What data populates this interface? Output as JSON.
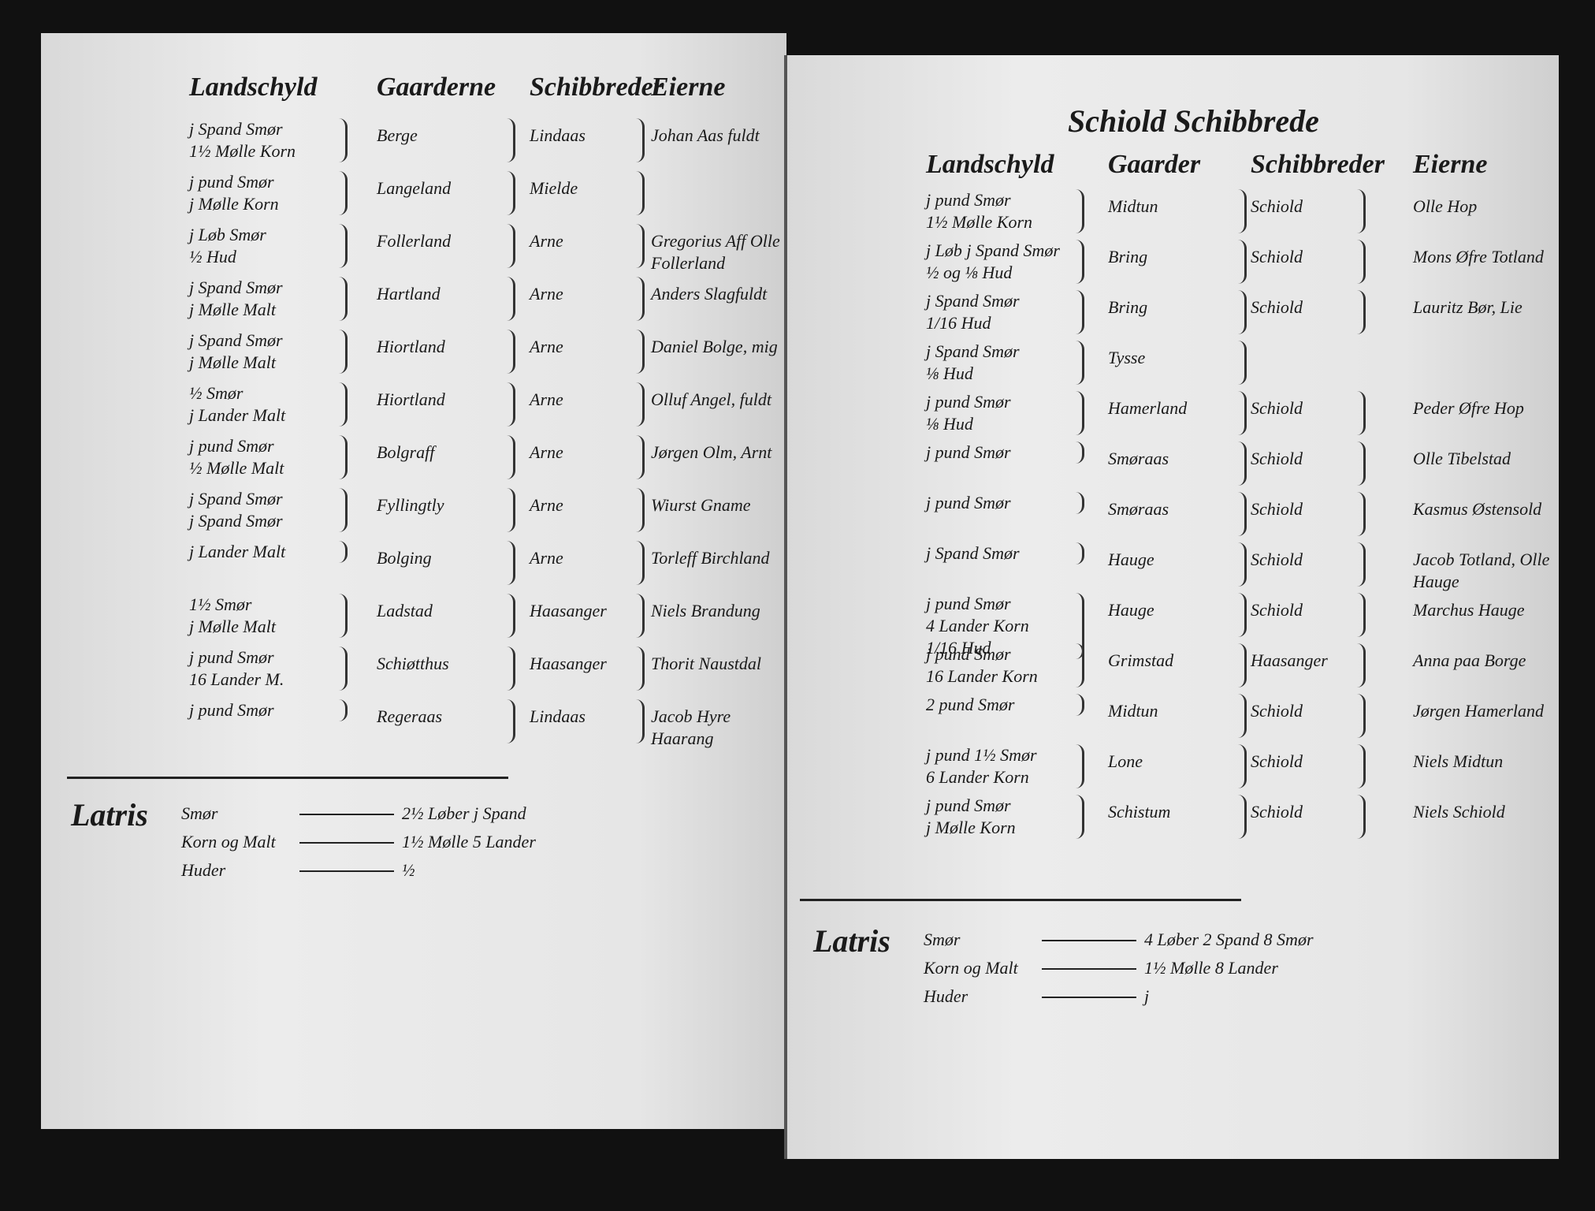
{
  "left": {
    "headers": [
      "Landschyld",
      "Gaarderne",
      "Schibbreder",
      "Eierne"
    ],
    "rows": [
      {
        "landschyld": [
          "j Spand Smør",
          "1½ Mølle Korn"
        ],
        "gaard": "Berge",
        "schibbrede": "Lindaas",
        "eier": "Johan Aas fuldt"
      },
      {
        "landschyld": [
          "j pund Smør",
          "j Mølle Korn"
        ],
        "gaard": "Langeland",
        "schibbrede": "Mielde"
      },
      {
        "landschyld": [
          "j Løb Smør",
          "½ Hud"
        ],
        "gaard": "Follerland",
        "schibbrede": "Arne",
        "eier": "Gregorius Aff Olle Follerland"
      },
      {
        "landschyld": [
          "j Spand Smør",
          "j Mølle Malt"
        ],
        "gaard": "Hartland",
        "schibbrede": "Arne",
        "eier": "Anders Slagfuldt"
      },
      {
        "landschyld": [
          "j Spand Smør",
          "j Mølle Malt"
        ],
        "gaard": "Hiortland",
        "schibbrede": "Arne",
        "eier": "Daniel Bolge, mig"
      },
      {
        "landschyld": [
          "½ Smør",
          "j Lander Malt"
        ],
        "gaard": "Hiortland",
        "schibbrede": "Arne",
        "eier": "Olluf Angel, fuldt"
      },
      {
        "landschyld": [
          "j pund Smør",
          "½ Mølle Malt"
        ],
        "gaard": "Bolgraff",
        "schibbrede": "Arne",
        "eier": "Jørgen Olm, Arnt"
      },
      {
        "landschyld": [
          "j Spand Smør",
          "j Spand Smør"
        ],
        "gaard": "Fyllingtly",
        "schibbrede": "Arne",
        "eier": "Wiurst Gname"
      },
      {
        "landschyld": [
          "j Lander Malt"
        ],
        "gaard": "Bolging",
        "schibbrede": "Arne",
        "eier": "Torleff Birchland"
      },
      {
        "landschyld": [
          "1½ Smør",
          "j Mølle Malt"
        ],
        "gaard": "Ladstad",
        "schibbrede": "Haasanger",
        "eier": "Niels Brandung"
      },
      {
        "landschyld": [
          "j pund Smør",
          "16 Lander M."
        ],
        "gaard": "Schiøtthus",
        "schibbrede": "Haasanger",
        "eier": "Thorit Naustdal"
      },
      {
        "landschyld": [
          "j pund Smør"
        ],
        "gaard": "Regeraas",
        "schibbrede": "Lindaas",
        "eier": "Jacob Hyre Haarang"
      }
    ],
    "tally": {
      "label": "Latris",
      "lines": [
        [
          "Smør",
          "2½ Løber j Spand"
        ],
        [
          "Korn og Malt",
          "1½ Mølle 5 Lander"
        ],
        [
          "Huder",
          "½"
        ]
      ]
    }
  },
  "right": {
    "title": "Schiold Schibbrede",
    "headers": [
      "Landschyld",
      "Gaarder",
      "Schibbreder",
      "Eierne"
    ],
    "rows": [
      {
        "landschyld": [
          "j pund Smør",
          "1½ Mølle Korn"
        ],
        "gaard": "Midtun",
        "schibbrede": "Schiold",
        "eier": "Olle Hop"
      },
      {
        "landschyld": [
          "j Løb j Spand Smør",
          "½ og ⅛ Hud"
        ],
        "gaard": "Bring",
        "schibbrede": "Schiold",
        "eier": "Mons Øfre Totland"
      },
      {
        "landschyld": [
          "j Spand Smør",
          "1/16 Hud"
        ],
        "gaard": "Bring",
        "schibbrede": "Schiold",
        "eier": "Lauritz Bør, Lie"
      },
      {
        "landschyld": [
          "j Spand Smør",
          "⅛ Hud"
        ],
        "gaard": "Tysse"
      },
      {
        "landschyld": [
          "j pund Smør",
          "⅛ Hud"
        ],
        "gaard": "Hamerland",
        "schibbrede": "Schiold",
        "eier": "Peder Øfre Hop"
      },
      {
        "landschyld": [
          "j pund Smør"
        ],
        "gaard": "Smøraas",
        "schibbrede": "Schiold",
        "eier": "Olle Tibelstad"
      },
      {
        "landschyld": [
          "j pund Smør"
        ],
        "gaard": "Smøraas",
        "schibbrede": "Schiold",
        "eier": "Kasmus Østensold"
      },
      {
        "landschyld": [
          "j Spand Smør"
        ],
        "gaard": "Hauge",
        "schibbrede": "Schiold",
        "eier": "Jacob Totland, Olle Hauge"
      },
      {
        "landschyld": [
          "j pund Smør",
          "4 Lander Korn",
          "1/16 Hud"
        ],
        "gaard": "Hauge",
        "schibbrede": "Schiold",
        "eier": "Marchus Hauge"
      },
      {
        "landschyld": [
          "j pund Smør",
          "16 Lander Korn"
        ],
        "gaard": "Grimstad",
        "schibbrede": "Haasanger",
        "eier": "Anna paa Borge"
      },
      {
        "landschyld": [
          "2 pund Smør"
        ],
        "gaard": "Midtun",
        "schibbrede": "Schiold",
        "eier": "Jørgen Hamerland"
      },
      {
        "landschyld": [
          "j pund 1½ Smør",
          "6 Lander Korn"
        ],
        "gaard": "Lone",
        "schibbrede": "Schiold",
        "eier": "Niels Midtun"
      },
      {
        "landschyld": [
          "j pund Smør",
          "j Mølle Korn"
        ],
        "gaard": "Schistum",
        "schibbrede": "Schiold",
        "eier": "Niels Schiold"
      }
    ],
    "tally": {
      "label": "Latris",
      "lines": [
        [
          "Smør",
          "4 Løber 2 Spand 8 Smør"
        ],
        [
          "Korn og Malt",
          "1½ Mølle 8 Lander"
        ],
        [
          "Huder",
          "j"
        ]
      ]
    }
  }
}
